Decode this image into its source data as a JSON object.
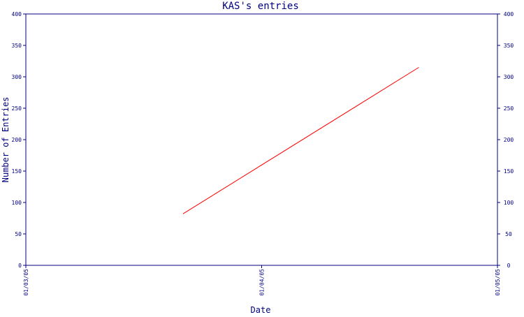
{
  "chart_data": {
    "type": "line",
    "title": "KAS's entries",
    "xlabel": "Date",
    "ylabel": "Number of Entries",
    "x_ticks": [
      "01/03/05",
      "01/04/05",
      "01/05/05"
    ],
    "xlim": [
      "01/03/05",
      "01/05/05"
    ],
    "ylim": [
      0,
      400
    ],
    "y_ticks": [
      0,
      50,
      100,
      150,
      200,
      250,
      300,
      350,
      400
    ],
    "grid": false,
    "legend": "none",
    "series": [
      {
        "x": [
          "01/03/05 16:00",
          "01/04/05 16:00"
        ],
        "y": [
          82,
          315
        ]
      }
    ]
  },
  "colors": {
    "axis": "#000080",
    "text": "#000080",
    "line": "#ff0000",
    "background": "#ffffff"
  }
}
